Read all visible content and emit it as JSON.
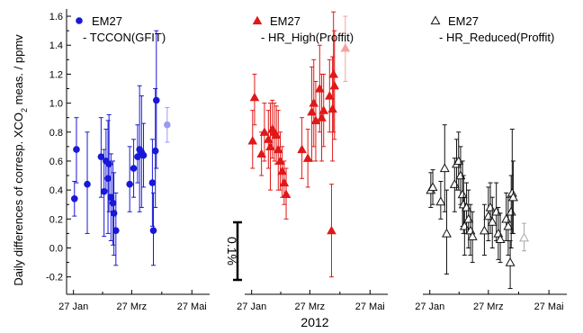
{
  "figure": {
    "ylabel_prefix": "Daily differences of corresp. XCO",
    "ylabel_sub": "2",
    "ylabel_suffix": " meas. / ppmv",
    "xlabel": "2012",
    "scalebar_label": "0.1%"
  },
  "chart_data": [
    {
      "type": "scatter",
      "panel": "left",
      "legend": {
        "line1": "EM27",
        "line2": "- TCCON(GFIT)",
        "position": "top-left"
      },
      "color": "#1818d8",
      "marker": "filled-circle",
      "xlim": [
        20,
        165
      ],
      "ylim": [
        -0.32,
        1.65
      ],
      "x_ticks": [
        {
          "x": 27,
          "label": "27 Jan"
        },
        {
          "x": 86,
          "label": "27 Mrz"
        },
        {
          "x": 147,
          "label": "27 Mai"
        }
      ],
      "y_ticks": [
        -0.2,
        0,
        0.2,
        0.4,
        0.6,
        0.8,
        1.0,
        1.2,
        1.4,
        1.6
      ],
      "y_tick_labels": [
        "-0.2",
        "0.0",
        "0.2",
        "0.4",
        "0.6",
        "0.8",
        "1.0",
        "1.2",
        "1.4",
        "1.6"
      ],
      "points": [
        {
          "x": 28,
          "y": 0.34,
          "lo": 0.22,
          "hi": 0.46
        },
        {
          "x": 30,
          "y": 0.68,
          "lo": 0.45,
          "hi": 0.9
        },
        {
          "x": 41,
          "y": 0.44,
          "lo": 0.1,
          "hi": 0.8
        },
        {
          "x": 55,
          "y": 0.63,
          "lo": 0.35,
          "hi": 0.9
        },
        {
          "x": 58,
          "y": 0.39,
          "lo": 0.08,
          "hi": 0.68
        },
        {
          "x": 60,
          "y": 0.6,
          "lo": 0.4,
          "hi": 0.82
        },
        {
          "x": 62,
          "y": 0.48,
          "lo": 0.1,
          "hi": 0.88
        },
        {
          "x": 63,
          "y": 0.58,
          "lo": 0.25,
          "hi": 0.92
        },
        {
          "x": 65,
          "y": 0.35,
          "lo": 0.05,
          "hi": 0.65
        },
        {
          "x": 67,
          "y": 0.31,
          "lo": 0.02,
          "hi": 0.6
        },
        {
          "x": 68,
          "y": 0.24,
          "lo": -0.05,
          "hi": 0.52
        },
        {
          "x": 70,
          "y": 0.12,
          "lo": -0.12,
          "hi": 0.38
        },
        {
          "x": 84,
          "y": 0.44,
          "lo": 0.25,
          "hi": 0.7
        },
        {
          "x": 88,
          "y": 0.55,
          "lo": 0.35,
          "hi": 0.75
        },
        {
          "x": 92,
          "y": 0.63,
          "lo": 0.45,
          "hi": 0.85
        },
        {
          "x": 94,
          "y": 0.68,
          "lo": 0.25,
          "hi": 1.12
        },
        {
          "x": 96,
          "y": 0.66,
          "lo": 0.28,
          "hi": 1.05
        },
        {
          "x": 98,
          "y": 0.64,
          "lo": 0.42,
          "hi": 0.86
        },
        {
          "x": 107,
          "y": 0.45,
          "lo": 0.15,
          "hi": 0.75
        },
        {
          "x": 108,
          "y": 0.12,
          "lo": -0.12,
          "hi": 0.38
        },
        {
          "x": 110,
          "y": 0.67,
          "lo": 0.28,
          "hi": 1.1
        },
        {
          "x": 111,
          "y": 1.02,
          "lo": 0.55,
          "hi": 1.5
        }
      ],
      "faded_point": {
        "x": 122,
        "y": 0.85,
        "lo": 0.73,
        "hi": 0.97,
        "color": "#9a9af0"
      }
    },
    {
      "type": "scatter",
      "panel": "middle",
      "legend": {
        "line1": "EM27",
        "line2": "- HR_High(Proffit)",
        "position": "top-left"
      },
      "color": "#e01818",
      "marker": "filled-triangle",
      "xlim": [
        20,
        165
      ],
      "ylim": [
        -0.32,
        1.65
      ],
      "x_ticks": [
        {
          "x": 27,
          "label": "27 Jan"
        },
        {
          "x": 86,
          "label": "27 Mrz"
        },
        {
          "x": 147,
          "label": "27 Mai"
        }
      ],
      "points": [
        {
          "x": 28,
          "y": 0.74,
          "lo": 0.55,
          "hi": 0.95
        },
        {
          "x": 30,
          "y": 1.04,
          "lo": 0.85,
          "hi": 1.2
        },
        {
          "x": 37,
          "y": 0.65,
          "lo": 0.5,
          "hi": 0.8
        },
        {
          "x": 40,
          "y": 0.8,
          "lo": 0.6,
          "hi": 1.0
        },
        {
          "x": 44,
          "y": 0.75,
          "lo": 0.55,
          "hi": 0.95
        },
        {
          "x": 46,
          "y": 0.7,
          "lo": 0.4,
          "hi": 1.0
        },
        {
          "x": 48,
          "y": 0.82,
          "lo": 0.62,
          "hi": 1.02
        },
        {
          "x": 50,
          "y": 0.8,
          "lo": 0.6,
          "hi": 1.0
        },
        {
          "x": 52,
          "y": 0.78,
          "lo": 0.58,
          "hi": 0.98
        },
        {
          "x": 54,
          "y": 0.68,
          "lo": 0.4,
          "hi": 0.95
        },
        {
          "x": 56,
          "y": 0.6,
          "lo": 0.4,
          "hi": 0.8
        },
        {
          "x": 58,
          "y": 0.53,
          "lo": 0.35,
          "hi": 0.7
        },
        {
          "x": 60,
          "y": 0.45,
          "lo": 0.3,
          "hi": 0.6
        },
        {
          "x": 62,
          "y": 0.37,
          "lo": 0.2,
          "hi": 0.55
        },
        {
          "x": 78,
          "y": 0.68,
          "lo": 0.48,
          "hi": 0.9
        },
        {
          "x": 84,
          "y": 0.62,
          "lo": 0.42,
          "hi": 0.82
        },
        {
          "x": 88,
          "y": 0.94,
          "lo": 0.6,
          "hi": 1.25
        },
        {
          "x": 90,
          "y": 1.0,
          "lo": 0.7,
          "hi": 1.3
        },
        {
          "x": 92,
          "y": 0.88,
          "lo": 0.6,
          "hi": 1.15
        },
        {
          "x": 96,
          "y": 1.1,
          "lo": 0.8,
          "hi": 1.4
        },
        {
          "x": 98,
          "y": 0.9,
          "lo": 0.6,
          "hi": 1.2
        },
        {
          "x": 100,
          "y": 0.95,
          "lo": 0.7,
          "hi": 1.2
        },
        {
          "x": 106,
          "y": 1.05,
          "lo": 0.8,
          "hi": 1.3
        },
        {
          "x": 108,
          "y": 0.12,
          "lo": -0.2,
          "hi": 0.44
        },
        {
          "x": 109,
          "y": 0.96,
          "lo": 0.6,
          "hi": 1.32
        },
        {
          "x": 110,
          "y": 1.2,
          "lo": 0.8,
          "hi": 1.63
        },
        {
          "x": 111,
          "y": 1.12,
          "lo": 0.75,
          "hi": 1.5
        }
      ],
      "faded_point": {
        "x": 122,
        "y": 1.38,
        "lo": 1.15,
        "hi": 1.6,
        "color": "#f4a0a0"
      }
    },
    {
      "type": "scatter",
      "panel": "right",
      "legend": {
        "line1": "EM27",
        "line2": "- HR_Reduced(Proffit)",
        "position": "top-left"
      },
      "color": "#111111",
      "marker": "open-triangle",
      "xlim": [
        20,
        165
      ],
      "ylim": [
        -0.32,
        1.65
      ],
      "x_ticks": [
        {
          "x": 27,
          "label": "27 Jan"
        },
        {
          "x": 86,
          "label": "27 Mrz"
        },
        {
          "x": 147,
          "label": "27 Mai"
        }
      ],
      "points": [
        {
          "x": 28,
          "y": 0.4,
          "lo": 0.28,
          "hi": 0.52
        },
        {
          "x": 30,
          "y": 0.42,
          "lo": 0.3,
          "hi": 0.54
        },
        {
          "x": 38,
          "y": 0.32,
          "lo": 0.2,
          "hi": 0.46
        },
        {
          "x": 42,
          "y": 0.55,
          "lo": 0.25,
          "hi": 0.85
        },
        {
          "x": 44,
          "y": 0.1,
          "lo": -0.18,
          "hi": 0.4
        },
        {
          "x": 52,
          "y": 0.44,
          "lo": 0.25,
          "hi": 0.62
        },
        {
          "x": 54,
          "y": 0.58,
          "lo": 0.4,
          "hi": 0.75
        },
        {
          "x": 56,
          "y": 0.6,
          "lo": 0.4,
          "hi": 0.8
        },
        {
          "x": 58,
          "y": 0.5,
          "lo": 0.3,
          "hi": 0.7
        },
        {
          "x": 60,
          "y": 0.37,
          "lo": 0.15,
          "hi": 0.6
        },
        {
          "x": 61,
          "y": 0.3,
          "lo": 0.1,
          "hi": 0.5
        },
        {
          "x": 62,
          "y": 0.15,
          "lo": -0.05,
          "hi": 0.35
        },
        {
          "x": 64,
          "y": 0.28,
          "lo": 0.1,
          "hi": 0.45
        },
        {
          "x": 66,
          "y": 0.2,
          "lo": 0.0,
          "hi": 0.4
        },
        {
          "x": 68,
          "y": 0.12,
          "lo": -0.05,
          "hi": 0.3
        },
        {
          "x": 70,
          "y": 0.08,
          "lo": -0.1,
          "hi": 0.25
        },
        {
          "x": 82,
          "y": 0.12,
          "lo": -0.05,
          "hi": 0.3
        },
        {
          "x": 86,
          "y": 0.22,
          "lo": 0.05,
          "hi": 0.42
        },
        {
          "x": 88,
          "y": 0.28,
          "lo": 0.1,
          "hi": 0.45
        },
        {
          "x": 90,
          "y": 0.18,
          "lo": 0.0,
          "hi": 0.35
        },
        {
          "x": 94,
          "y": 0.25,
          "lo": 0.05,
          "hi": 0.45
        },
        {
          "x": 96,
          "y": 0.1,
          "lo": -0.08,
          "hi": 0.28
        },
        {
          "x": 98,
          "y": 0.06,
          "lo": -0.1,
          "hi": 0.24
        },
        {
          "x": 104,
          "y": 0.2,
          "lo": 0.05,
          "hi": 0.38
        },
        {
          "x": 106,
          "y": 0.15,
          "lo": -0.05,
          "hi": 0.35
        },
        {
          "x": 108,
          "y": -0.1,
          "lo": -0.28,
          "hi": 0.05
        },
        {
          "x": 109,
          "y": 0.25,
          "lo": 0.0,
          "hi": 0.5
        },
        {
          "x": 110,
          "y": 0.38,
          "lo": 0.1,
          "hi": 0.82
        },
        {
          "x": 111,
          "y": 0.35,
          "lo": 0.1,
          "hi": 0.6
        }
      ],
      "faded_point": {
        "x": 122,
        "y": 0.07,
        "lo": -0.02,
        "hi": 0.17,
        "color": "#a8a8a8"
      }
    }
  ]
}
